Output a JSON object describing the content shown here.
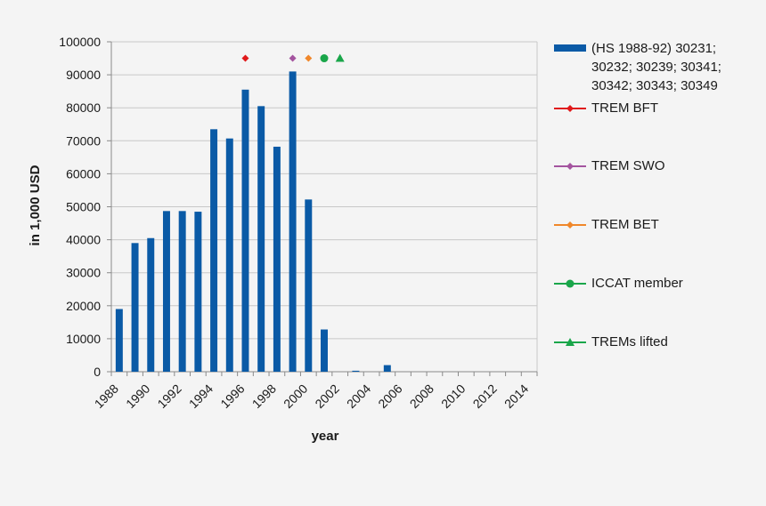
{
  "chart_data": {
    "type": "bar",
    "title": "",
    "xlabel": "year",
    "ylabel": "in 1,000 USD",
    "ylim": [
      0,
      100000
    ],
    "yticks": [
      "0",
      "10000",
      "20000",
      "30000",
      "40000",
      "50000",
      "60000",
      "70000",
      "80000",
      "90000",
      "100000"
    ],
    "xticks": [
      "1988",
      "1990",
      "1992",
      "1994",
      "1996",
      "1998",
      "2000",
      "2002",
      "2004",
      "2006",
      "2008",
      "2010",
      "2012",
      "2014"
    ],
    "categories": [
      "1988",
      "1989",
      "1990",
      "1991",
      "1992",
      "1993",
      "1994",
      "1995",
      "1996",
      "1997",
      "1998",
      "1999",
      "2000",
      "2001",
      "2002",
      "2003",
      "2004",
      "2005",
      "2006",
      "2007",
      "2008",
      "2009",
      "2010",
      "2011",
      "2012",
      "2013",
      "2014"
    ],
    "series": [
      {
        "name": "(HS 1988-92) 30231; 30232; 30239; 30341; 30342; 30343; 30349",
        "color": "#0a5aa6",
        "values": [
          19000,
          39000,
          40500,
          48700,
          48700,
          48500,
          73500,
          70700,
          85500,
          80500,
          68200,
          91000,
          52200,
          12800,
          0,
          300,
          0,
          2000,
          0,
          0,
          0,
          0,
          0,
          0,
          0,
          0,
          0
        ]
      }
    ],
    "events": [
      {
        "name": "TREM BFT",
        "year": 1996,
        "y": 95000,
        "color": "#e0191b",
        "marker": "diamond"
      },
      {
        "name": "TREM SWO",
        "year": 1999,
        "y": 95000,
        "color": "#a4549f",
        "marker": "diamond"
      },
      {
        "name": "TREM BET",
        "year": 2000,
        "y": 95000,
        "color": "#f0872a",
        "marker": "diamond"
      },
      {
        "name": "ICCAT member",
        "year": 2001,
        "y": 95000,
        "color": "#1aa64a",
        "marker": "circle"
      },
      {
        "name": "TREMs lifted",
        "year": 2002,
        "y": 95000,
        "color": "#1aa64a",
        "marker": "triangle"
      }
    ]
  }
}
